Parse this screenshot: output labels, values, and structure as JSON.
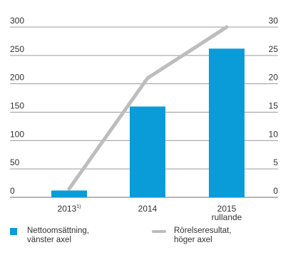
{
  "chart_data": {
    "type": "bar",
    "categories": [
      "2013",
      "2014",
      "2015"
    ],
    "category_sup": [
      "1)",
      "",
      ""
    ],
    "category_sub": [
      "",
      "",
      "rullande"
    ],
    "y_left": {
      "ticks": [
        "300",
        "250",
        "200",
        "150",
        "100",
        "50",
        "0"
      ],
      "ylim": [
        0,
        300
      ]
    },
    "y_right": {
      "ticks": [
        "30",
        "25",
        "20",
        "15",
        "10",
        "5",
        "0"
      ],
      "ylim": [
        0,
        30
      ]
    },
    "series": [
      {
        "name": "Nettoomsättning,\nvänster axel",
        "kind": "bar",
        "axis": "left",
        "values": [
          12,
          160,
          262
        ],
        "color": "#0a9bd9"
      },
      {
        "name": "Rörelseresultat,\nhöger axel",
        "kind": "line",
        "axis": "right",
        "values": [
          1.5,
          21,
          30
        ],
        "color": "#bdbdbd"
      }
    ],
    "grid": true
  }
}
